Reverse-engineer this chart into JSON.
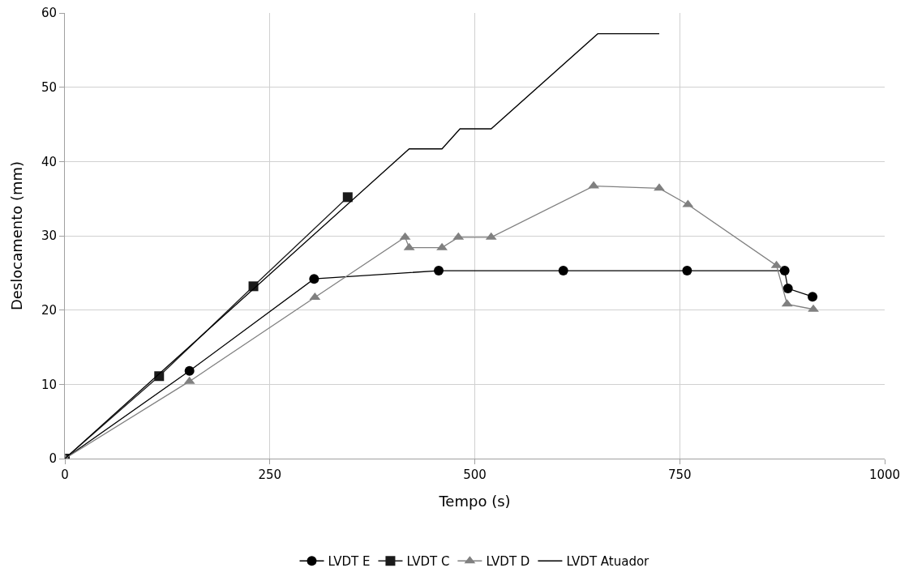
{
  "chart_data": {
    "type": "line",
    "xlabel": "Tempo (s)",
    "ylabel": "Deslocamento (mm)",
    "xlim": [
      0,
      1000
    ],
    "xticks": [
      0,
      250,
      500,
      750,
      1000
    ],
    "ylim": [
      0,
      60
    ],
    "yticks": [
      0,
      10,
      20,
      30,
      40,
      50,
      60
    ],
    "grid": true,
    "legend": "bottom",
    "series": [
      {
        "name": "LVDT E",
        "color": "#000000",
        "marker": "circle",
        "x": [
          0,
          152,
          304,
          456,
          608,
          759,
          878,
          882,
          912
        ],
        "values": [
          0,
          11.8,
          24.2,
          25.3,
          25.3,
          25.3,
          25.3,
          22.9,
          21.8
        ]
      },
      {
        "name": "LVDT C",
        "color": "#1a1a1a",
        "marker": "square",
        "x": [
          0,
          115,
          230,
          345
        ],
        "values": [
          0,
          11.1,
          23.2,
          35.2
        ]
      },
      {
        "name": "LVDT D",
        "color": "#808080",
        "marker": "triangle",
        "x": [
          0,
          152,
          305,
          415,
          420,
          460,
          480,
          520,
          645,
          725,
          760,
          868,
          881,
          913
        ],
        "values": [
          0,
          10.4,
          21.7,
          29.8,
          28.4,
          28.4,
          29.8,
          29.8,
          36.7,
          36.4,
          34.2,
          26.0,
          20.8,
          20.1
        ]
      },
      {
        "name": "LVDT Atuador",
        "color": "#000000",
        "marker": "none",
        "x": [
          0,
          420,
          460,
          482,
          520,
          650,
          725
        ],
        "values": [
          0,
          41.7,
          41.7,
          44.4,
          44.4,
          57.2,
          57.2
        ]
      }
    ]
  }
}
